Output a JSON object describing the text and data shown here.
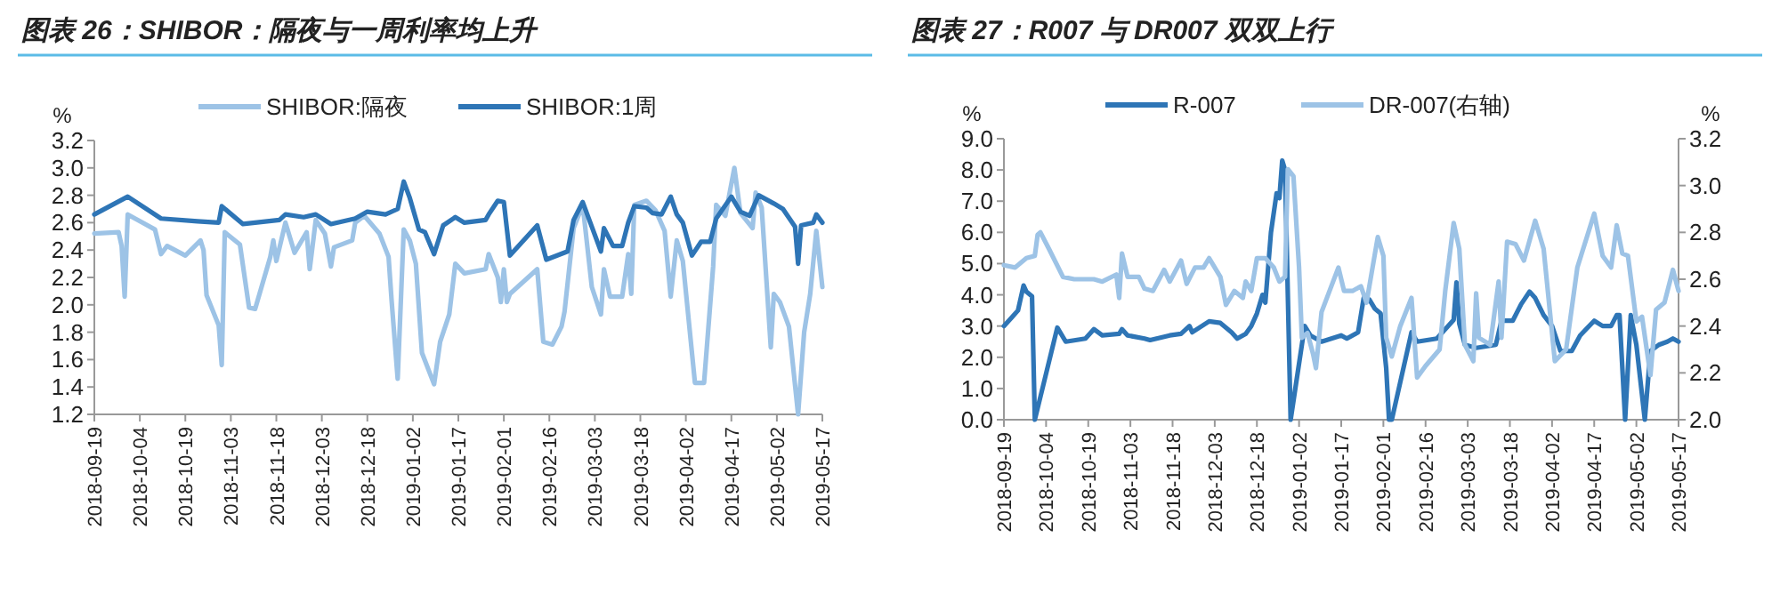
{
  "chart_data": [
    {
      "type": "line",
      "title": "图表 26：SHIBOR：隔夜与一周利率均上升",
      "ylabel": "%",
      "legend": "top",
      "xlim": [
        "2018-09-19",
        "2019-05-17"
      ],
      "xticks": [
        "2018-09-19",
        "2018-10-04",
        "2018-10-19",
        "2018-11-03",
        "2018-11-18",
        "2018-12-03",
        "2018-12-18",
        "2019-01-02",
        "2019-01-17",
        "2019-02-01",
        "2019-02-16",
        "2019-03-03",
        "2019-03-18",
        "2019-04-02",
        "2019-04-17",
        "2019-05-02",
        "2019-05-17"
      ],
      "ylim": [
        1.2,
        3.2
      ],
      "yticks": [
        {
          "value": 1.2,
          "label": "1.2"
        },
        {
          "value": 1.4,
          "label": "1.4"
        },
        {
          "value": 1.6,
          "label": "1.6"
        },
        {
          "value": 1.8,
          "label": "1.8"
        },
        {
          "value": 2.0,
          "label": "2.0"
        },
        {
          "value": 2.2,
          "label": "2.2"
        },
        {
          "value": 2.4,
          "label": "2.4"
        },
        {
          "value": 2.6,
          "label": "2.6"
        },
        {
          "value": 2.8,
          "label": "2.8"
        },
        {
          "value": 3.0,
          "label": "3.0"
        },
        {
          "value": 3.2,
          "label": "3.2"
        }
      ],
      "series": [
        {
          "name": "SHIBOR:隔夜",
          "color": "#9dc3e6",
          "x": [
            "2018-09-19",
            "2018-09-27",
            "2018-09-28",
            "2018-09-29",
            "2018-09-30",
            "2018-10-09",
            "2018-10-11",
            "2018-10-13",
            "2018-10-19",
            "2018-10-24",
            "2018-10-25",
            "2018-10-26",
            "2018-10-30",
            "2018-10-31",
            "2018-11-01",
            "2018-11-06",
            "2018-11-09",
            "2018-11-11",
            "2018-11-16",
            "2018-11-17",
            "2018-11-18",
            "2018-11-21",
            "2018-11-24",
            "2018-11-28",
            "2018-11-29",
            "2018-12-01",
            "2018-12-04",
            "2018-12-06",
            "2018-12-07",
            "2018-12-13",
            "2018-12-14",
            "2018-12-17",
            "2018-12-22",
            "2018-12-25",
            "2018-12-26",
            "2018-12-28",
            "2018-12-30",
            "2019-01-01",
            "2019-01-03",
            "2019-01-05",
            "2019-01-09",
            "2019-01-11",
            "2019-01-14",
            "2019-01-16",
            "2019-01-19",
            "2019-01-26",
            "2019-01-27",
            "2019-01-30",
            "2019-01-31",
            "2019-02-01",
            "2019-02-02",
            "2019-02-03",
            "2019-02-12",
            "2019-02-14",
            "2019-02-17",
            "2019-02-20",
            "2019-02-21",
            "2019-02-24",
            "2019-02-27",
            "2019-03-02",
            "2019-03-05",
            "2019-03-06",
            "2019-03-08",
            "2019-03-12",
            "2019-03-14",
            "2019-03-15",
            "2019-03-16",
            "2019-03-20",
            "2019-03-23",
            "2019-03-26",
            "2019-03-28",
            "2019-03-30",
            "2019-04-01",
            "2019-04-05",
            "2019-04-08",
            "2019-04-11",
            "2019-04-12",
            "2019-04-15",
            "2019-04-18",
            "2019-04-20",
            "2019-04-24",
            "2019-04-25",
            "2019-04-27",
            "2019-04-30",
            "2019-05-01",
            "2019-05-03",
            "2019-05-06",
            "2019-05-09",
            "2019-05-11",
            "2019-05-13",
            "2019-05-15",
            "2019-05-17"
          ],
          "values": [
            2.52,
            2.53,
            2.43,
            2.06,
            2.66,
            2.55,
            2.37,
            2.43,
            2.36,
            2.47,
            2.4,
            2.07,
            1.85,
            1.56,
            2.53,
            2.44,
            1.98,
            1.97,
            2.35,
            2.47,
            2.32,
            2.6,
            2.38,
            2.53,
            2.26,
            2.62,
            2.52,
            2.28,
            2.42,
            2.47,
            2.6,
            2.65,
            2.52,
            2.35,
            2.03,
            1.46,
            2.55,
            2.47,
            2.3,
            1.65,
            1.42,
            1.73,
            1.93,
            2.3,
            2.23,
            2.26,
            2.37,
            2.2,
            2.02,
            2.26,
            2.02,
            2.08,
            2.26,
            1.73,
            1.71,
            1.84,
            1.95,
            2.56,
            2.73,
            2.13,
            1.93,
            2.26,
            2.06,
            2.06,
            2.37,
            2.08,
            2.73,
            2.76,
            2.69,
            2.54,
            2.06,
            2.47,
            2.32,
            1.43,
            1.43,
            2.28,
            2.73,
            2.65,
            3.0,
            2.67,
            2.56,
            2.82,
            2.71,
            1.69,
            2.08,
            2.02,
            1.84,
            1.2,
            1.8,
            2.08,
            2.54,
            2.13
          ]
        },
        {
          "name": "SHIBOR:1周",
          "color": "#2e75b6",
          "x": [
            "2018-09-19",
            "2018-09-30",
            "2018-10-11",
            "2018-10-23",
            "2018-10-30",
            "2018-10-31",
            "2018-11-07",
            "2018-11-19",
            "2018-11-21",
            "2018-11-27",
            "2018-12-01",
            "2018-12-06",
            "2018-12-14",
            "2018-12-18",
            "2018-12-24",
            "2018-12-28",
            "2018-12-30",
            "2019-01-01",
            "2019-01-04",
            "2019-01-06",
            "2019-01-09",
            "2019-01-12",
            "2019-01-16",
            "2019-01-19",
            "2019-01-26",
            "2019-01-27",
            "2019-01-30",
            "2019-02-01",
            "2019-02-03",
            "2019-02-12",
            "2019-02-15",
            "2019-02-22",
            "2019-02-24",
            "2019-02-27",
            "2019-03-05",
            "2019-03-06",
            "2019-03-09",
            "2019-03-12",
            "2019-03-14",
            "2019-03-16",
            "2019-03-20",
            "2019-03-22",
            "2019-03-25",
            "2019-03-28",
            "2019-03-30",
            "2019-04-01",
            "2019-04-04",
            "2019-04-07",
            "2019-04-10",
            "2019-04-12",
            "2019-04-17",
            "2019-04-20",
            "2019-04-23",
            "2019-04-26",
            "2019-05-01",
            "2019-05-04",
            "2019-05-08",
            "2019-05-09",
            "2019-05-10",
            "2019-05-14",
            "2019-05-15",
            "2019-05-17"
          ],
          "values": [
            2.66,
            2.79,
            2.63,
            2.61,
            2.6,
            2.72,
            2.59,
            2.62,
            2.66,
            2.64,
            2.66,
            2.59,
            2.63,
            2.68,
            2.66,
            2.7,
            2.9,
            2.78,
            2.55,
            2.53,
            2.37,
            2.58,
            2.64,
            2.6,
            2.62,
            2.66,
            2.76,
            2.75,
            2.36,
            2.58,
            2.33,
            2.39,
            2.62,
            2.75,
            2.39,
            2.56,
            2.43,
            2.43,
            2.6,
            2.72,
            2.71,
            2.67,
            2.66,
            2.79,
            2.66,
            2.6,
            2.36,
            2.46,
            2.46,
            2.63,
            2.79,
            2.68,
            2.65,
            2.8,
            2.74,
            2.7,
            2.57,
            2.3,
            2.58,
            2.6,
            2.66,
            2.6
          ]
        }
      ]
    },
    {
      "type": "line",
      "title": "图表 27：R007 与 DR007 双双上行",
      "ylabel": "%",
      "y2label": "%",
      "legend": "top",
      "xlim": [
        "2018-09-19",
        "2019-05-17"
      ],
      "xticks": [
        "2018-09-19",
        "2018-10-04",
        "2018-10-19",
        "2018-11-03",
        "2018-11-18",
        "2018-12-03",
        "2018-12-18",
        "2019-01-02",
        "2019-01-17",
        "2019-02-01",
        "2019-02-16",
        "2019-03-03",
        "2019-03-18",
        "2019-04-02",
        "2019-04-17",
        "2019-05-02",
        "2019-05-17"
      ],
      "ylim": [
        0,
        9
      ],
      "yticks": [
        {
          "value": 0,
          "label": "0.0"
        },
        {
          "value": 1,
          "label": "1.0"
        },
        {
          "value": 2,
          "label": "2.0"
        },
        {
          "value": 3,
          "label": "3.0"
        },
        {
          "value": 4,
          "label": "4.0"
        },
        {
          "value": 5,
          "label": "5.0"
        },
        {
          "value": 6,
          "label": "6.0"
        },
        {
          "value": 7,
          "label": "7.0"
        },
        {
          "value": 8,
          "label": "8.0"
        },
        {
          "value": 9,
          "label": "9.0"
        }
      ],
      "y2lim": [
        2.0,
        3.2
      ],
      "y2ticks": [
        {
          "value": 2.0,
          "label": "2.0"
        },
        {
          "value": 2.2,
          "label": "2.2"
        },
        {
          "value": 2.4,
          "label": "2.4"
        },
        {
          "value": 2.6,
          "label": "2.6"
        },
        {
          "value": 2.8,
          "label": "2.8"
        },
        {
          "value": 3.0,
          "label": "3.0"
        },
        {
          "value": 3.2,
          "label": "3.2"
        }
      ],
      "series": [
        {
          "name": "R-007",
          "color": "#2e75b6",
          "x": [
            "2018-09-19",
            "2018-09-22",
            "2018-09-24",
            "2018-09-26",
            "2018-09-27",
            "2018-09-29",
            "2018-09-30",
            "2018-10-08",
            "2018-10-11",
            "2018-10-18",
            "2018-10-21",
            "2018-10-24",
            "2018-10-30",
            "2018-10-31",
            "2018-11-02",
            "2018-11-08",
            "2018-11-10",
            "2018-11-17",
            "2018-11-21",
            "2018-11-24",
            "2018-11-25",
            "2018-12-01",
            "2018-12-05",
            "2018-12-09",
            "2018-12-11",
            "2018-12-14",
            "2018-12-16",
            "2018-12-18",
            "2018-12-20",
            "2018-12-21",
            "2018-12-23",
            "2018-12-25",
            "2018-12-26",
            "2018-12-27",
            "2018-12-28",
            "2018-12-30",
            "2019-01-04",
            "2019-01-06",
            "2019-01-10",
            "2019-01-17",
            "2019-01-19",
            "2019-01-23",
            "2019-01-25",
            "2019-01-27",
            "2019-01-29",
            "2019-01-31",
            "2019-02-02",
            "2019-02-03",
            "2019-02-04",
            "2019-02-11",
            "2019-02-13",
            "2019-02-20",
            "2019-02-22",
            "2019-02-26",
            "2019-02-27",
            "2019-02-28",
            "2019-03-02",
            "2019-03-06",
            "2019-03-13",
            "2019-03-15",
            "2019-03-19",
            "2019-03-22",
            "2019-03-25",
            "2019-03-27",
            "2019-03-30",
            "2019-04-02",
            "2019-04-05",
            "2019-04-09",
            "2019-04-12",
            "2019-04-17",
            "2019-04-20",
            "2019-04-23",
            "2019-04-25",
            "2019-04-26",
            "2019-04-28",
            "2019-04-30",
            "2019-05-02",
            "2019-05-05",
            "2019-05-07",
            "2019-05-10",
            "2019-05-13",
            "2019-05-15",
            "2019-05-17"
          ],
          "values": [
            3.0,
            3.3,
            3.5,
            4.3,
            4.1,
            3.95,
            0,
            2.95,
            2.5,
            2.6,
            2.9,
            2.7,
            2.75,
            2.9,
            2.7,
            2.6,
            2.55,
            2.7,
            2.75,
            3.0,
            2.8,
            3.15,
            3.1,
            2.8,
            2.6,
            2.75,
            3.0,
            3.4,
            4.0,
            3.75,
            6.0,
            7.25,
            7.1,
            8.3,
            8.0,
            0,
            3.0,
            2.7,
            2.5,
            2.7,
            2.6,
            2.8,
            3.9,
            3.85,
            3.55,
            3.4,
            1.65,
            0,
            0,
            2.8,
            2.5,
            2.6,
            2.8,
            3.2,
            4.4,
            3.07,
            2.4,
            2.3,
            2.4,
            3.17,
            3.17,
            3.7,
            4.1,
            3.9,
            3.35,
            3.0,
            2.2,
            2.2,
            2.7,
            3.17,
            3.0,
            3.0,
            3.35,
            3.35,
            0,
            3.35,
            2.4,
            0,
            2.2,
            2.4,
            2.5,
            2.6,
            2.5
          ]
        },
        {
          "name": "DR-007(右轴)",
          "color": "#9dc3e6",
          "axis": "y2",
          "x": [
            "2018-09-19",
            "2018-09-23",
            "2018-09-27",
            "2018-09-30",
            "2018-10-01",
            "2018-10-02",
            "2018-10-05",
            "2018-10-10",
            "2018-10-14",
            "2018-10-21",
            "2018-10-24",
            "2018-10-29",
            "2018-10-30",
            "2018-10-31",
            "2018-11-02",
            "2018-11-06",
            "2018-11-08",
            "2018-11-11",
            "2018-11-15",
            "2018-11-17",
            "2018-11-21",
            "2018-11-23",
            "2018-11-26",
            "2018-11-29",
            "2018-12-01",
            "2018-12-05",
            "2018-12-07",
            "2018-12-10",
            "2018-12-13",
            "2018-12-14",
            "2018-12-16",
            "2018-12-18",
            "2018-12-21",
            "2018-12-24",
            "2018-12-26",
            "2018-12-28",
            "2018-12-29",
            "2018-12-31",
            "2019-01-02",
            "2019-01-03",
            "2019-01-05",
            "2019-01-07",
            "2019-01-08",
            "2019-01-10",
            "2019-01-16",
            "2019-01-18",
            "2019-01-21",
            "2019-01-24",
            "2019-01-26",
            "2019-01-30",
            "2019-02-01",
            "2019-02-02",
            "2019-02-04",
            "2019-02-07",
            "2019-02-11",
            "2019-02-13",
            "2019-02-16",
            "2019-02-21",
            "2019-02-23",
            "2019-02-26",
            "2019-02-28",
            "2019-03-02",
            "2019-03-05",
            "2019-03-06",
            "2019-03-07",
            "2019-03-11",
            "2019-03-14",
            "2019-03-15",
            "2019-03-17",
            "2019-03-20",
            "2019-03-23",
            "2019-03-27",
            "2019-03-30",
            "2019-04-03",
            "2019-04-07",
            "2019-04-11",
            "2019-04-17",
            "2019-04-20",
            "2019-04-23",
            "2019-04-25",
            "2019-04-27",
            "2019-04-29",
            "2019-05-02",
            "2019-05-04",
            "2019-05-07",
            "2019-05-09",
            "2019-05-12",
            "2019-05-15",
            "2019-05-17"
          ],
          "values": [
            2.66,
            2.65,
            2.69,
            2.7,
            2.79,
            2.8,
            2.73,
            2.61,
            2.6,
            2.6,
            2.59,
            2.62,
            2.52,
            2.71,
            2.61,
            2.61,
            2.56,
            2.55,
            2.64,
            2.59,
            2.68,
            2.58,
            2.65,
            2.65,
            2.69,
            2.61,
            2.49,
            2.55,
            2.52,
            2.59,
            2.55,
            2.69,
            2.69,
            2.65,
            2.59,
            2.61,
            3.07,
            3.04,
            2.65,
            2.35,
            2.37,
            2.28,
            2.22,
            2.46,
            2.65,
            2.55,
            2.55,
            2.57,
            2.5,
            2.78,
            2.7,
            2.35,
            2.27,
            2.4,
            2.52,
            2.18,
            2.23,
            2.3,
            2.55,
            2.84,
            2.73,
            2.32,
            2.25,
            2.54,
            2.35,
            2.32,
            2.59,
            2.35,
            2.76,
            2.75,
            2.68,
            2.85,
            2.73,
            2.25,
            2.3,
            2.65,
            2.88,
            2.7,
            2.65,
            2.83,
            2.71,
            2.7,
            2.42,
            2.44,
            2.19,
            2.47,
            2.5,
            2.64,
            2.55
          ]
        }
      ]
    }
  ]
}
